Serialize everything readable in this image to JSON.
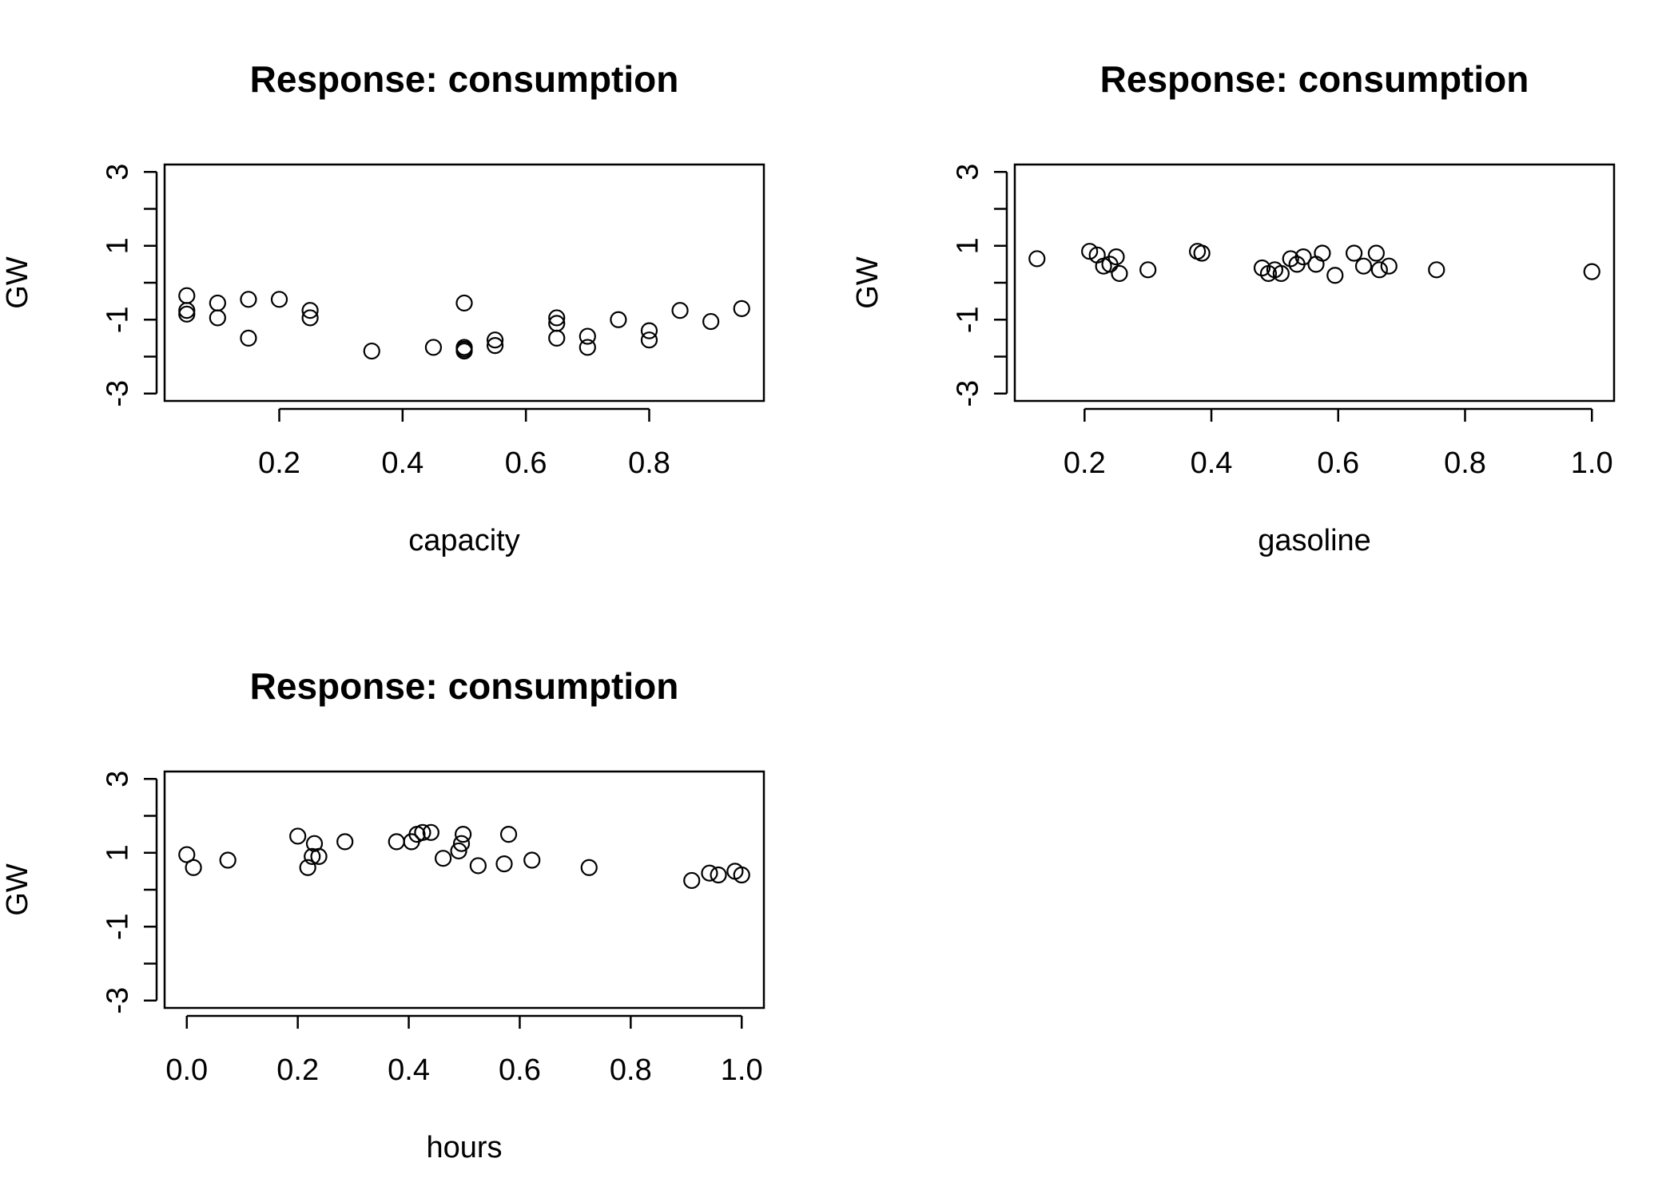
{
  "chart_data": [
    {
      "type": "scatter",
      "title": "Response: consumption",
      "xlabel": "capacity",
      "ylabel": "GW",
      "xlim": [
        0.014,
        0.986
      ],
      "ylim": [
        -3.2,
        3.2
      ],
      "xticks": [
        "0.2",
        "0.4",
        "0.6",
        "0.8"
      ],
      "xtick_values": [
        0.2,
        0.4,
        0.6,
        0.8
      ],
      "yticks": [
        "-3",
        "-1",
        "1",
        "3"
      ],
      "ytick_values": [
        -3,
        -1,
        1,
        3
      ],
      "grid": false,
      "x": [
        0.05,
        0.05,
        0.05,
        0.1,
        0.1,
        0.15,
        0.15,
        0.2,
        0.25,
        0.25,
        0.35,
        0.45,
        0.5,
        0.5,
        0.5,
        0.5,
        0.55,
        0.55,
        0.65,
        0.65,
        0.65,
        0.7,
        0.7,
        0.75,
        0.8,
        0.8,
        0.85,
        0.9,
        0.95
      ],
      "y": [
        -0.35,
        -0.75,
        -0.85,
        -0.55,
        -0.95,
        -0.45,
        -1.5,
        -0.45,
        -0.75,
        -0.95,
        -1.85,
        -1.75,
        -0.55,
        -1.75,
        -1.85,
        -1.8,
        -1.55,
        -1.7,
        -0.95,
        -1.1,
        -1.5,
        -1.45,
        -1.75,
        -1.0,
        -1.3,
        -1.55,
        -0.75,
        -1.05,
        -0.7
      ]
    },
    {
      "type": "scatter",
      "title": "Response: consumption",
      "xlabel": "gasoline",
      "ylabel": "GW",
      "xlim": [
        0.09,
        1.035
      ],
      "ylim": [
        -3.2,
        3.2
      ],
      "xticks": [
        "0.2",
        "0.4",
        "0.6",
        "0.8",
        "1.0"
      ],
      "xtick_values": [
        0.2,
        0.4,
        0.6,
        0.8,
        1.0
      ],
      "yticks": [
        "-3",
        "-1",
        "1",
        "3"
      ],
      "ytick_values": [
        -3,
        -1,
        1,
        3
      ],
      "grid": false,
      "x": [
        0.125,
        0.208,
        0.22,
        0.23,
        0.24,
        0.25,
        0.255,
        0.3,
        0.378,
        0.385,
        0.48,
        0.49,
        0.5,
        0.51,
        0.525,
        0.535,
        0.545,
        0.565,
        0.575,
        0.595,
        0.625,
        0.64,
        0.66,
        0.665,
        0.68,
        0.755,
        1.0
      ],
      "y": [
        0.65,
        0.85,
        0.75,
        0.45,
        0.5,
        0.7,
        0.25,
        0.35,
        0.85,
        0.8,
        0.4,
        0.25,
        0.35,
        0.25,
        0.65,
        0.5,
        0.7,
        0.5,
        0.8,
        0.2,
        0.8,
        0.45,
        0.8,
        0.35,
        0.45,
        0.35,
        0.3
      ]
    },
    {
      "type": "scatter",
      "title": "Response: consumption",
      "xlabel": "hours",
      "ylabel": "GW",
      "xlim": [
        -0.04,
        1.04
      ],
      "ylim": [
        -3.2,
        3.2
      ],
      "xticks": [
        "0.0",
        "0.2",
        "0.4",
        "0.6",
        "0.8",
        "1.0"
      ],
      "xtick_values": [
        0.0,
        0.2,
        0.4,
        0.6,
        0.8,
        1.0
      ],
      "yticks": [
        "-3",
        "-1",
        "1",
        "3"
      ],
      "ytick_values": [
        -3,
        -1,
        1,
        3
      ],
      "grid": false,
      "x": [
        0.0,
        0.012,
        0.074,
        0.2,
        0.218,
        0.226,
        0.23,
        0.238,
        0.285,
        0.378,
        0.405,
        0.415,
        0.425,
        0.44,
        0.462,
        0.49,
        0.495,
        0.498,
        0.525,
        0.572,
        0.58,
        0.622,
        0.725,
        0.91,
        0.942,
        0.958,
        0.988,
        1.0
      ],
      "y": [
        0.95,
        0.6,
        0.8,
        1.45,
        0.6,
        0.9,
        1.25,
        0.9,
        1.3,
        1.3,
        1.3,
        1.5,
        1.55,
        1.55,
        0.85,
        1.05,
        1.25,
        1.5,
        0.65,
        0.7,
        1.5,
        0.8,
        0.6,
        0.25,
        0.45,
        0.4,
        0.5,
        0.4
      ]
    }
  ]
}
